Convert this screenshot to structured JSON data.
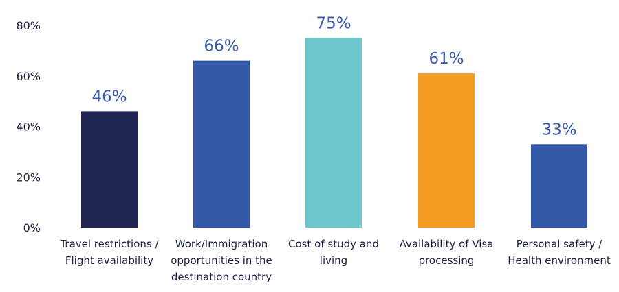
{
  "chart_data": {
    "type": "bar",
    "title": "",
    "xlabel": "",
    "ylabel": "",
    "ylim": [
      0,
      80
    ],
    "yticks": [
      {
        "value": 0,
        "label": "0%"
      },
      {
        "value": 20,
        "label": "20%"
      },
      {
        "value": 40,
        "label": "40%"
      },
      {
        "value": 60,
        "label": "60%"
      },
      {
        "value": 80,
        "label": "80%"
      }
    ],
    "grid": false,
    "legend": "none",
    "categories": [
      [
        "Travel restrictions /",
        "Flight availability"
      ],
      [
        "Work/Immigration",
        "opportunities in the",
        "destination country"
      ],
      [
        "Cost of study and",
        "living"
      ],
      [
        "Availability of Visa",
        "processing"
      ],
      [
        "Personal safety /",
        "Health environment"
      ]
    ],
    "values": [
      46,
      66,
      75,
      61,
      33
    ],
    "value_labels": [
      "46%",
      "66%",
      "75%",
      "61%",
      "33%"
    ],
    "colors": [
      "#1d2550",
      "#3458a8",
      "#6cc6ce",
      "#f29d22",
      "#3458a8"
    ],
    "label_color": "#3a5bae",
    "text_color": "#1b2040"
  }
}
